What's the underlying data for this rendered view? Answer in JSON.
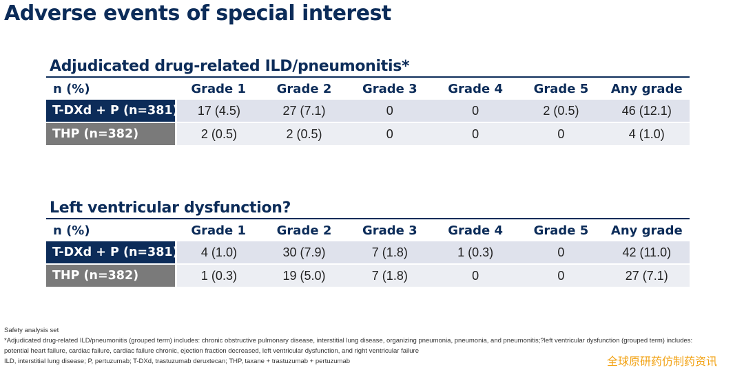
{
  "page": {
    "title": "Adverse events of special interest"
  },
  "tables": [
    {
      "title": "Adjudicated drug-related ILD/pneumonitis*",
      "headers": [
        "n (%)",
        "Grade 1",
        "Grade 2",
        "Grade 3",
        "Grade 4",
        "Grade 5",
        "Any grade"
      ],
      "rows": [
        {
          "arm": "T-DXd + P (n=381)",
          "values": [
            "17 (4.5)",
            "27 (7.1)",
            "0",
            "0",
            "2 (0.5)",
            "46 (12.1)"
          ]
        },
        {
          "arm": "THP (n=382)",
          "values": [
            "2 (0.5)",
            "2 (0.5)",
            "0",
            "0",
            "0",
            "4 (1.0)"
          ]
        }
      ]
    },
    {
      "title": "Left ventricular dysfunction?",
      "headers": [
        "n (%)",
        "Grade 1",
        "Grade 2",
        "Grade 3",
        "Grade 4",
        "Grade 5",
        "Any grade"
      ],
      "rows": [
        {
          "arm": "T-DXd + P (n=381)",
          "values": [
            "4 (1.0)",
            "30 (7.9)",
            "7 (1.8)",
            "1 (0.3)",
            "0",
            "42 (11.0)"
          ]
        },
        {
          "arm": "THP (n=382)",
          "values": [
            "1 (0.3)",
            "19 (5.0)",
            "7 (1.8)",
            "0",
            "0",
            "27 (7.1)"
          ]
        }
      ]
    }
  ],
  "footnotes": [
    "Safety analysis set",
    "*Adjudicated drug-related ILD/pneumonitis (grouped term) includes: chronic obstructive pulmonary disease, interstitial lung disease, organizing pneumonia, pneumonia, and pneumonitis;?left ventricular dysfunction (grouped term) includes:",
    " potential heart failure, cardiac failure, cardiac failure chronic, ejection fraction decreased, left ventricular dysfunction, and right ventricular failure",
    "ILD, interstitial lung disease; P, pertuzumab; T-DXd, trastuzumab deruxtecan; THP, taxane + trastuzumab + pertuzumab"
  ],
  "watermark": "全球原研药仿制药资讯",
  "colors": {
    "navy": "#0c2c59",
    "gray_label": "#7a7a7a",
    "row_tint_1": "#dfe2ec",
    "row_tint_2": "#eceef3",
    "watermark": "#f2a316"
  }
}
